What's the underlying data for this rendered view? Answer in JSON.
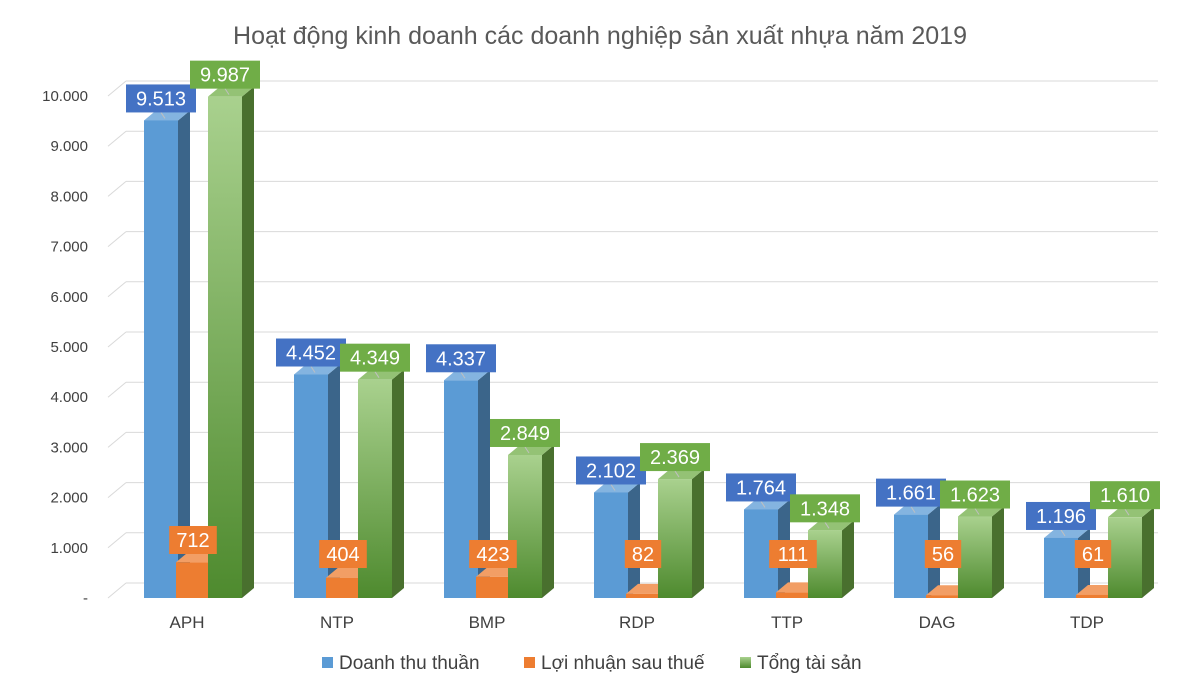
{
  "chart_data": {
    "type": "bar",
    "title": "Hoạt động kinh doanh các doanh nghiệp sản xuất nhựa năm 2019",
    "categories": [
      "APH",
      "NTP",
      "BMP",
      "RDP",
      "TTP",
      "DAG",
      "TDP"
    ],
    "series": [
      {
        "name": "Doanh thu thuần",
        "color": "#5b9bd5",
        "label_bg": "#4472c4",
        "values": [
          9513,
          4452,
          4337,
          2102,
          1764,
          1661,
          1196
        ],
        "labels": [
          "9.513",
          "4.452",
          "4.337",
          "2.102",
          "1.764",
          "1.661",
          "1.196"
        ]
      },
      {
        "name": "Lợi nhuận sau thuế",
        "color": "#ed7d31",
        "label_bg": "#ed7d31",
        "values": [
          712,
          404,
          423,
          82,
          111,
          56,
          61
        ],
        "labels": [
          "712",
          "404",
          "423",
          "82",
          "111",
          "56",
          "61"
        ]
      },
      {
        "name": "Tổng tài sản",
        "color": "#70ad47",
        "label_bg": "#70ad47",
        "values": [
          9987,
          4349,
          2849,
          2369,
          1348,
          1623,
          1610
        ],
        "labels": [
          "9.987",
          "4.349",
          "2.849",
          "2.369",
          "1.348",
          "1.623",
          "1.610"
        ]
      }
    ],
    "ylim": [
      0,
      10000
    ],
    "yticks": [
      0,
      1000,
      2000,
      3000,
      4000,
      5000,
      6000,
      7000,
      8000,
      9000,
      10000
    ],
    "ytick_labels": [
      "-",
      "1.000",
      "2.000",
      "3.000",
      "4.000",
      "5.000",
      "6.000",
      "7.000",
      "8.000",
      "9.000",
      "10.000"
    ],
    "grid": true,
    "legend_position": "bottom"
  }
}
